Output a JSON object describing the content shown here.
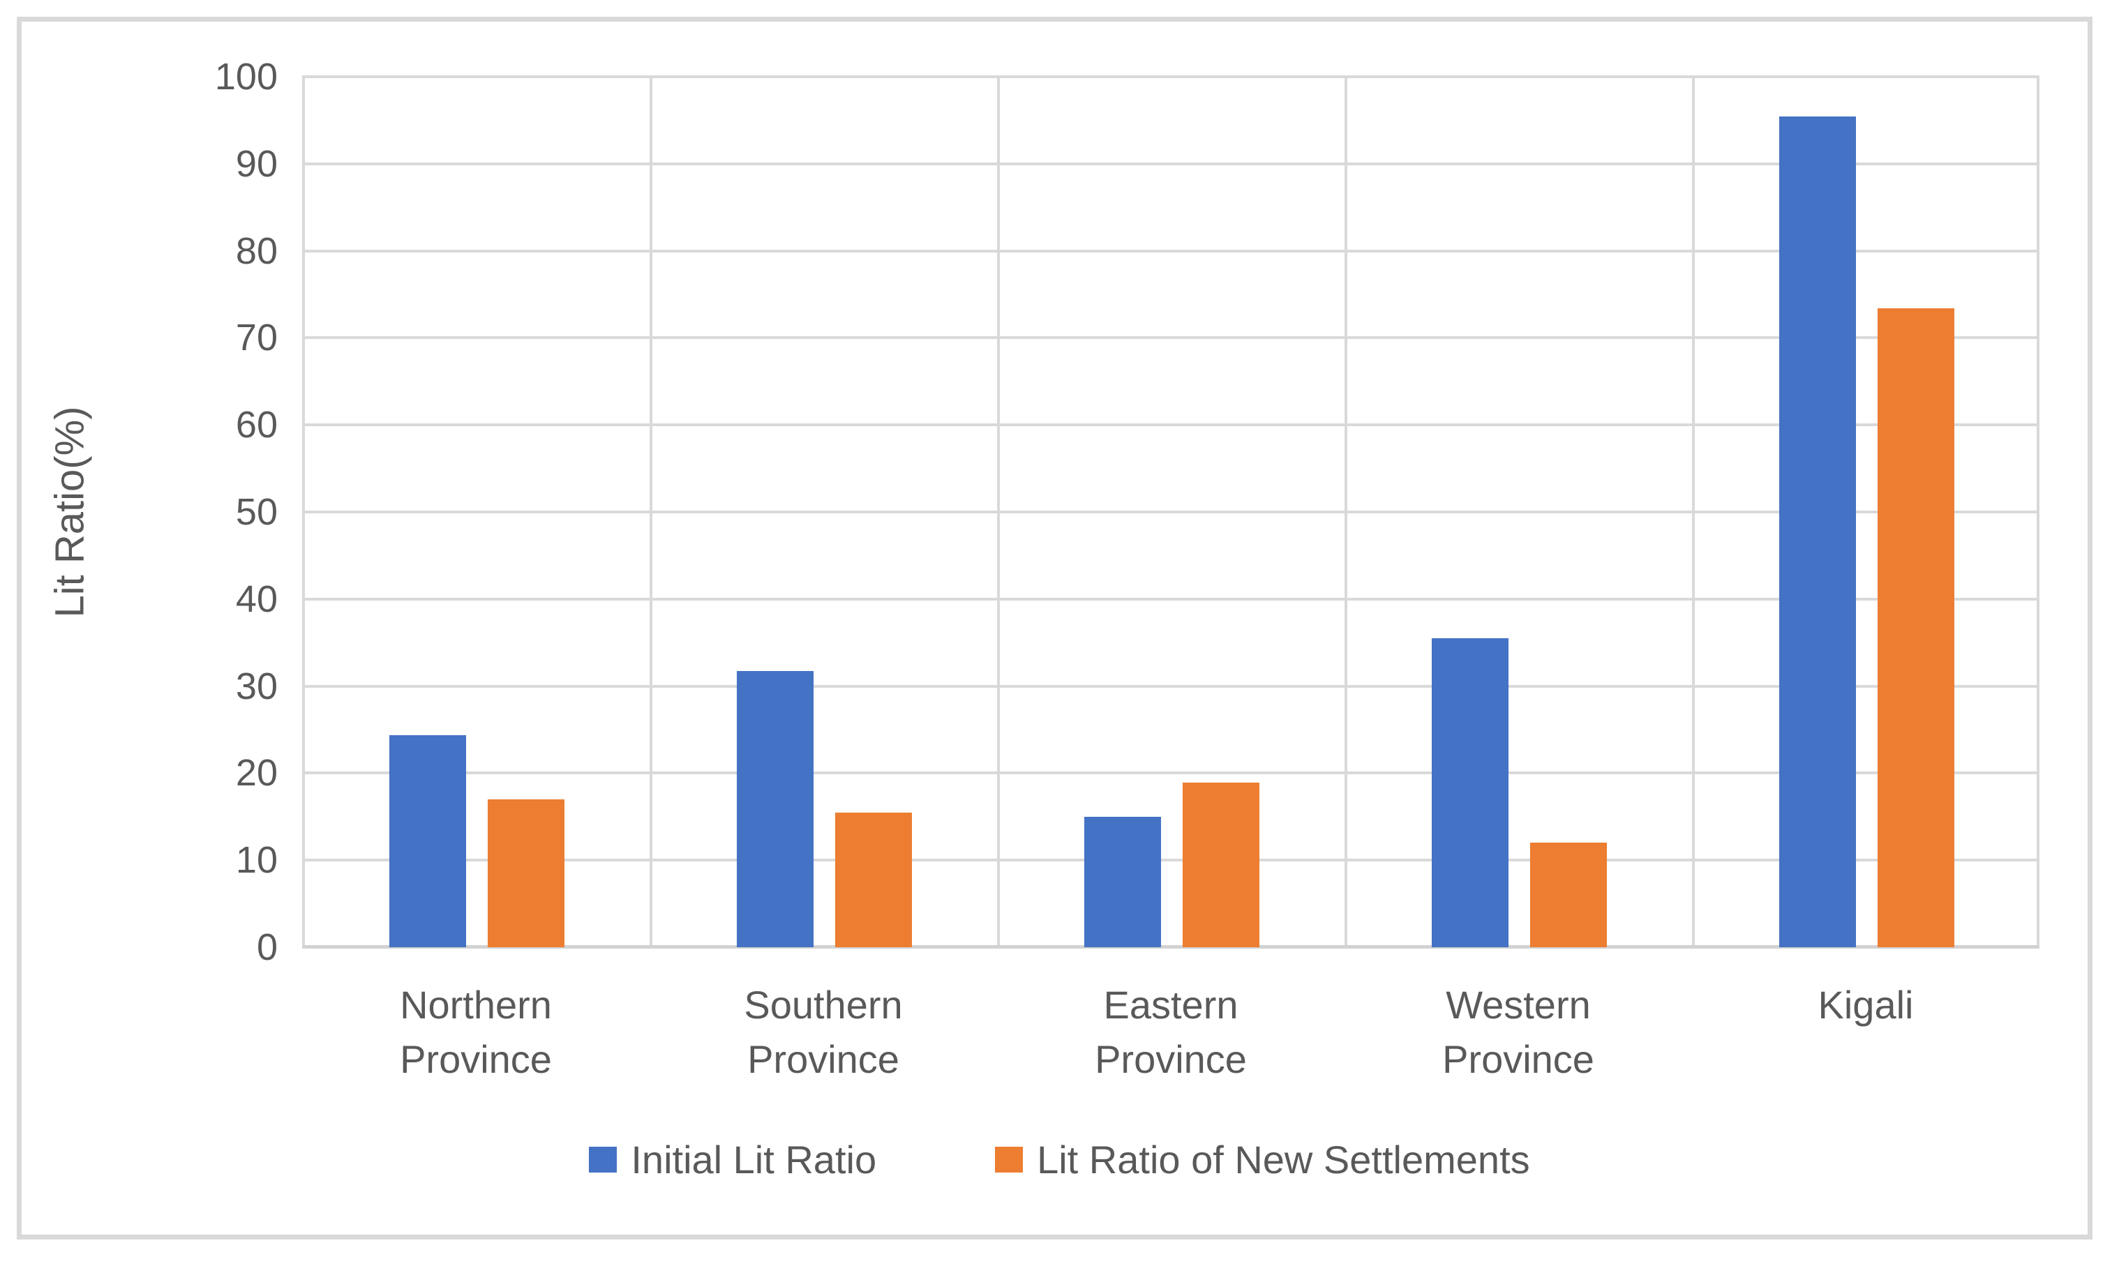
{
  "chart_data": {
    "type": "bar",
    "title": "",
    "xlabel": "",
    "ylabel": "Lit Ratio(%)",
    "ylim": [
      0,
      100
    ],
    "yticks": [
      0,
      10,
      20,
      30,
      40,
      50,
      60,
      70,
      80,
      90,
      100
    ],
    "grid": true,
    "legend_position": "bottom",
    "categories": [
      "Northern Province",
      "Southern Province",
      "Eastern Province",
      "Western Province",
      "Kigali"
    ],
    "series": [
      {
        "name": "Initial Lit Ratio",
        "color": "#4472C4",
        "values": [
          24.4,
          31.7,
          15.0,
          35.5,
          95.4
        ]
      },
      {
        "name": "Lit Ratio of New Settlements",
        "color": "#ED7D31",
        "values": [
          17.0,
          15.5,
          18.9,
          12.0,
          73.4
        ]
      }
    ]
  },
  "colors": {
    "gridline": "#D9D9D9",
    "axis_text": "#595959",
    "frame_border": "#D9D9D9",
    "background": "#FFFFFF"
  }
}
